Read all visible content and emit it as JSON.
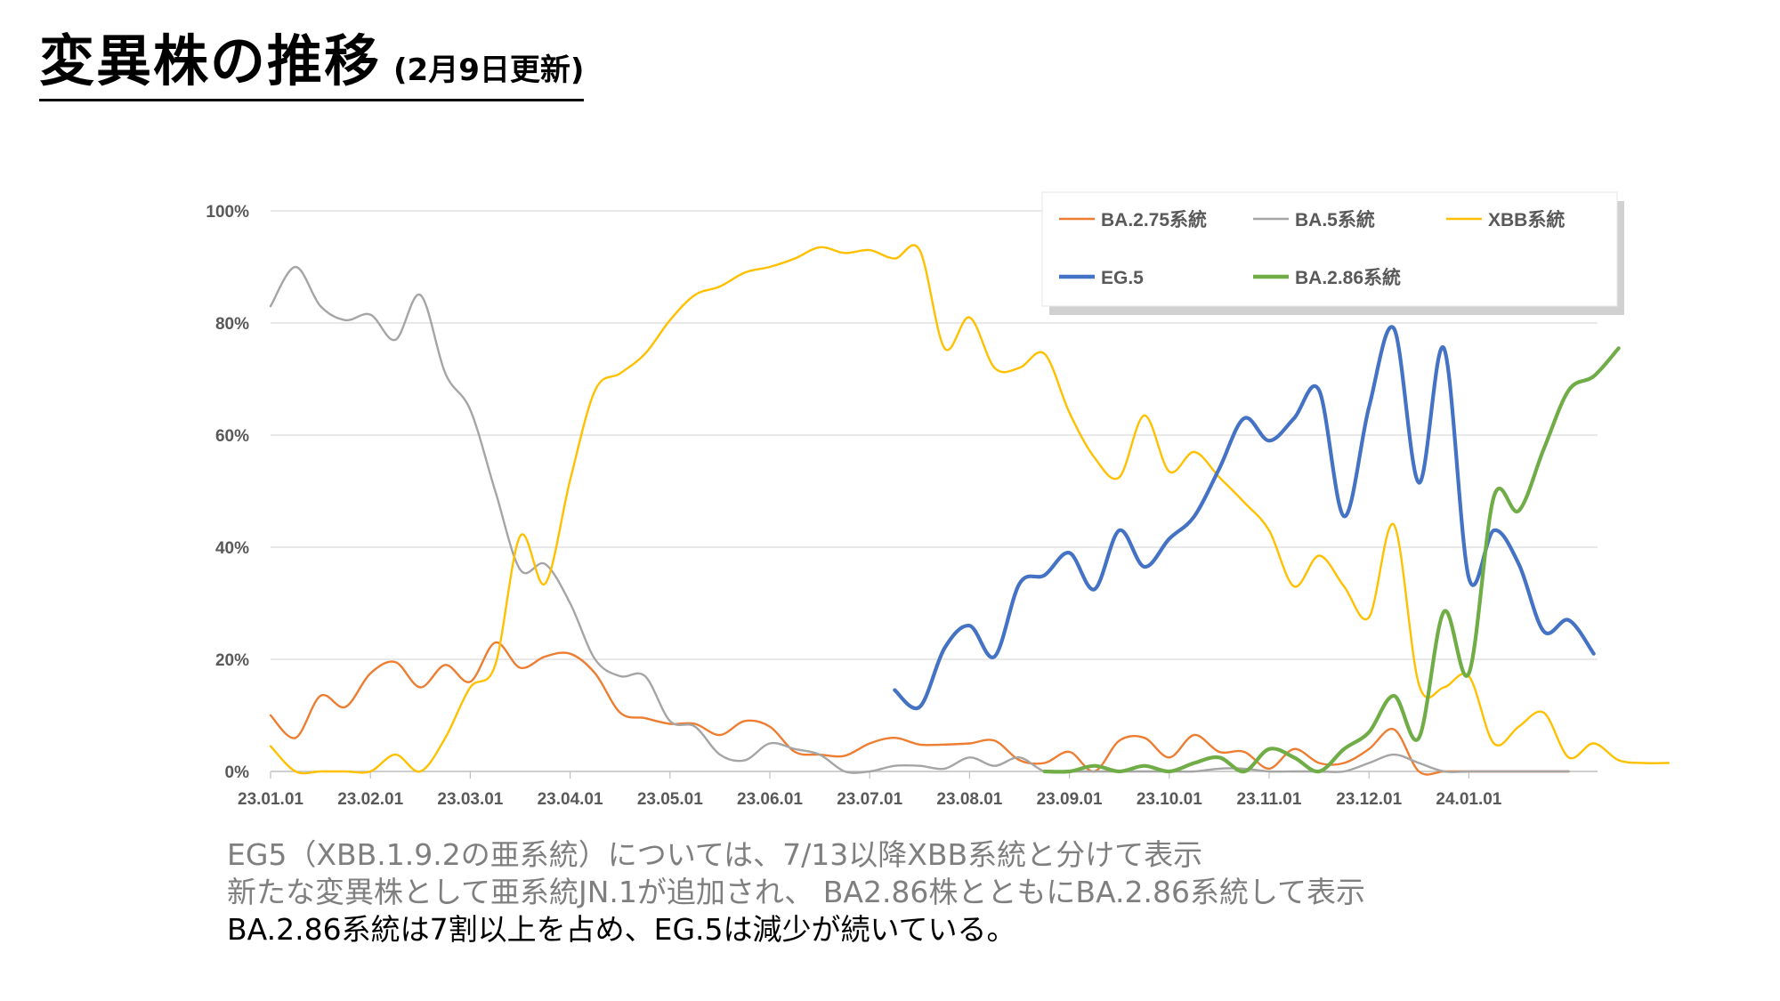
{
  "title": {
    "main": "変異株の推移",
    "sub": "(2月9日更新)"
  },
  "notes": [
    "EG5（XBB.1.9.2の亜系統）については、7/13以降XBB系統と分けて表示",
    "新たな変異株として亜系統JN.1が追加され、 BA2.86株とともにBA.2.86系統して表示",
    "BA.2.86系統は7割以上を占め、EG.5は減少が続いている。"
  ],
  "chart_data": {
    "type": "line",
    "x_labels": [
      "23.01.01",
      "23.02.01",
      "23.03.01",
      "23.04.01",
      "23.05.01",
      "23.06.01",
      "23.07.01",
      "23.08.01",
      "23.09.01",
      "23.10.01",
      "23.11.01",
      "23.12.01",
      "24.01.01"
    ],
    "x_label_weeks": [
      0,
      4,
      8,
      12,
      16,
      20,
      24,
      28,
      32,
      36,
      40,
      44,
      48
    ],
    "y_ticks": [
      "0%",
      "20%",
      "40%",
      "60%",
      "80%",
      "100%"
    ],
    "ylim": [
      0,
      100
    ],
    "grid": "horizontal",
    "legend_position": "top-right",
    "series": [
      {
        "name": "BA.2.75系統",
        "color": "#ED7D31",
        "values": [
          10,
          6,
          13.5,
          11.5,
          17.5,
          19.5,
          15,
          19,
          16,
          23,
          18.5,
          20.5,
          21,
          17.5,
          10.5,
          9.5,
          8.5,
          8.5,
          6.5,
          9,
          8,
          3.5,
          3,
          2.8,
          5,
          6,
          4.8,
          4.8,
          5,
          5.5,
          2,
          1.5,
          3.5,
          0,
          5.5,
          6,
          2.5,
          6.5,
          3.5,
          3.5,
          0.5,
          4,
          1.5,
          1.5,
          4,
          7.5,
          0,
          0,
          0,
          0,
          0,
          0,
          0
        ]
      },
      {
        "name": "BA.5系統",
        "color": "#A5A5A5",
        "values": [
          83,
          90,
          83,
          80.5,
          81.5,
          77,
          85,
          71,
          64.5,
          50,
          36,
          37,
          30,
          20,
          17,
          17,
          9,
          8,
          3,
          2,
          5,
          4,
          3,
          0,
          0,
          1,
          1,
          0.5,
          2.5,
          1,
          2.5,
          0,
          0,
          0,
          0,
          0,
          0,
          0,
          0.5,
          0.5,
          0,
          0,
          0,
          0,
          1.5,
          3,
          1.5,
          0,
          0,
          0,
          0,
          0,
          0
        ]
      },
      {
        "name": "XBB系統",
        "color": "#FFC000",
        "values": [
          4.5,
          0,
          0,
          0,
          0,
          3,
          0,
          6,
          15,
          19,
          42,
          33.5,
          52,
          68,
          71,
          74.5,
          80.5,
          85,
          86.5,
          89,
          90,
          91.5,
          93.5,
          92.5,
          93,
          91.5,
          93,
          75.5,
          81,
          72,
          72,
          74.5,
          64,
          56,
          52.5,
          63.5,
          53.5,
          57,
          52.5,
          48,
          43,
          33,
          38.5,
          33,
          27.5,
          44,
          15.5,
          15,
          17,
          5,
          8,
          10.5,
          2.5,
          5,
          2,
          1.5,
          1.5
        ]
      },
      {
        "name": "EG.5",
        "color": "#4472C4",
        "start_index": 25,
        "values": [
          14.5,
          11.5,
          22,
          26,
          20.5,
          33.5,
          35,
          39,
          32.5,
          43,
          36.5,
          41.5,
          45.5,
          54,
          63,
          59,
          63,
          68,
          45.5,
          65,
          79,
          51.5,
          75.5,
          34.5,
          43,
          37,
          25,
          27,
          21
        ]
      },
      {
        "name": "BA.2.86系統",
        "color": "#70AD47",
        "start_index": 31,
        "values": [
          0,
          0,
          1,
          0,
          1,
          0,
          1.5,
          2.5,
          0,
          4,
          2.5,
          0,
          4,
          7,
          13.5,
          6,
          28.5,
          17.5,
          49,
          46.5,
          57.5,
          68,
          70.5,
          75.5
        ]
      }
    ]
  }
}
